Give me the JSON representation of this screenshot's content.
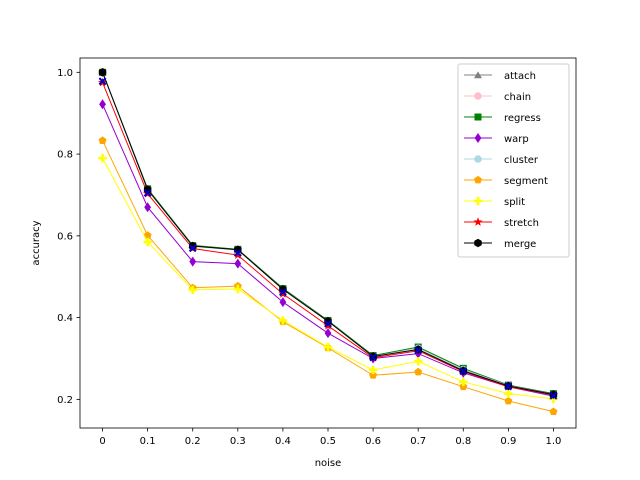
{
  "chart_data": {
    "type": "line",
    "title": "",
    "xlabel": "noise",
    "ylabel": "accuracy",
    "x": [
      0,
      0.1,
      0.2,
      0.3,
      0.4,
      0.5,
      0.6,
      0.7,
      0.8,
      0.9,
      1.0
    ],
    "x_tick_labels": [
      "0",
      "0.1",
      "0.2",
      "0.3",
      "0.4",
      "0.5",
      "0.6",
      "0.7",
      "0.8",
      "0.9",
      "1.0"
    ],
    "y_ticks": [
      0.2,
      0.4,
      0.6,
      0.8,
      1.0
    ],
    "y_tick_labels": [
      "0.2",
      "0.4",
      "0.6",
      "0.8",
      "1.0"
    ],
    "xlim": [
      -0.05,
      1.05
    ],
    "ylim": [
      0.13,
      1.035
    ],
    "grid": false,
    "legend_position": "top-right",
    "series": [
      {
        "name": "attach",
        "color": "#808080",
        "marker": "triangle",
        "values": [
          1.0,
          0.715,
          0.577,
          0.567,
          0.472,
          0.393,
          0.307,
          0.327,
          0.275,
          0.235,
          0.213
        ]
      },
      {
        "name": "chain",
        "color": "#ffc0cb",
        "marker": "circle",
        "values": [
          1.0,
          0.713,
          0.575,
          0.566,
          0.47,
          0.392,
          0.306,
          0.326,
          0.274,
          0.234,
          0.212
        ]
      },
      {
        "name": "regress",
        "color": "#008000",
        "marker": "square",
        "values": [
          1.0,
          0.715,
          0.576,
          0.567,
          0.471,
          0.393,
          0.307,
          0.328,
          0.276,
          0.235,
          0.214
        ]
      },
      {
        "name": "warp",
        "color": "#9400d3",
        "marker": "diamond",
        "values": [
          0.922,
          0.67,
          0.537,
          0.532,
          0.438,
          0.362,
          0.3,
          0.312,
          0.265,
          0.231,
          0.208
        ]
      },
      {
        "name": "cluster",
        "color": "#add8e6",
        "marker": "circle",
        "values": [
          1.0,
          0.712,
          0.574,
          0.565,
          0.469,
          0.391,
          0.305,
          0.325,
          0.273,
          0.234,
          0.212
        ]
      },
      {
        "name": "segment",
        "color": "#ffa500",
        "marker": "pentagon",
        "values": [
          0.833,
          0.601,
          0.473,
          0.477,
          0.39,
          0.326,
          0.259,
          0.267,
          0.231,
          0.196,
          0.17
        ]
      },
      {
        "name": "split",
        "color": "#ffff00",
        "marker": "plus",
        "values": [
          0.79,
          0.585,
          0.468,
          0.47,
          0.393,
          0.328,
          0.272,
          0.293,
          0.243,
          0.214,
          0.201
        ]
      },
      {
        "name": "stretch",
        "color": "#ff0000",
        "marker": "star",
        "values": [
          0.975,
          0.703,
          0.569,
          0.553,
          0.458,
          0.38,
          0.302,
          0.319,
          0.268,
          0.231,
          0.211
        ]
      },
      {
        "name": "merge",
        "color": "#000000",
        "marker": "hexagon",
        "values": [
          1.0,
          0.713,
          0.575,
          0.566,
          0.469,
          0.391,
          0.305,
          0.322,
          0.27,
          0.233,
          0.212
        ]
      }
    ],
    "extra_points": [
      {
        "color": "#0000cd",
        "marker": "x",
        "values": [
          0.978,
          0.705,
          0.57,
          0.558,
          0.462,
          0.385,
          0.303,
          0.32,
          0.269,
          0.232,
          0.209
        ]
      }
    ]
  }
}
